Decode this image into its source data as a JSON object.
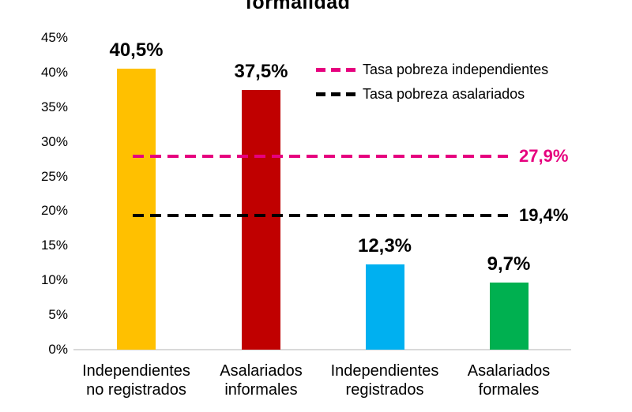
{
  "title": {
    "visible_text": "formalidad"
  },
  "legend": {
    "items": [
      {
        "label": "Tasa pobreza independientes",
        "color": "#E6007E"
      },
      {
        "label": "Tasa pobreza asalariados",
        "color": "#000000"
      }
    ]
  },
  "chart_data": {
    "type": "bar",
    "title": "formalidad",
    "categories": [
      "Independientes\nno registrados",
      "Asalariados\ninformales",
      "Independientes\nregistrados",
      "Asalariados\nformales"
    ],
    "values": [
      40.5,
      37.5,
      12.3,
      9.7
    ],
    "value_labels": [
      "40,5%",
      "37,5%",
      "12,3%",
      "9,7%"
    ],
    "bar_colors": [
      "#FFC000",
      "#C00000",
      "#00B0F0",
      "#00B050"
    ],
    "ylabel": "",
    "xlabel": "",
    "ylim": [
      0,
      45
    ],
    "ytick_step": 5,
    "ytick_labels": [
      "0%",
      "5%",
      "10%",
      "15%",
      "20%",
      "25%",
      "30%",
      "35%",
      "40%",
      "45%"
    ],
    "grid": false,
    "legend_position": "top-right",
    "reference_lines": [
      {
        "name": "Tasa pobreza independientes",
        "value": 27.9,
        "label": "27,9%",
        "color": "#E6007E"
      },
      {
        "name": "Tasa pobreza asalariados",
        "value": 19.4,
        "label": "19,4%",
        "color": "#000000"
      }
    ]
  }
}
